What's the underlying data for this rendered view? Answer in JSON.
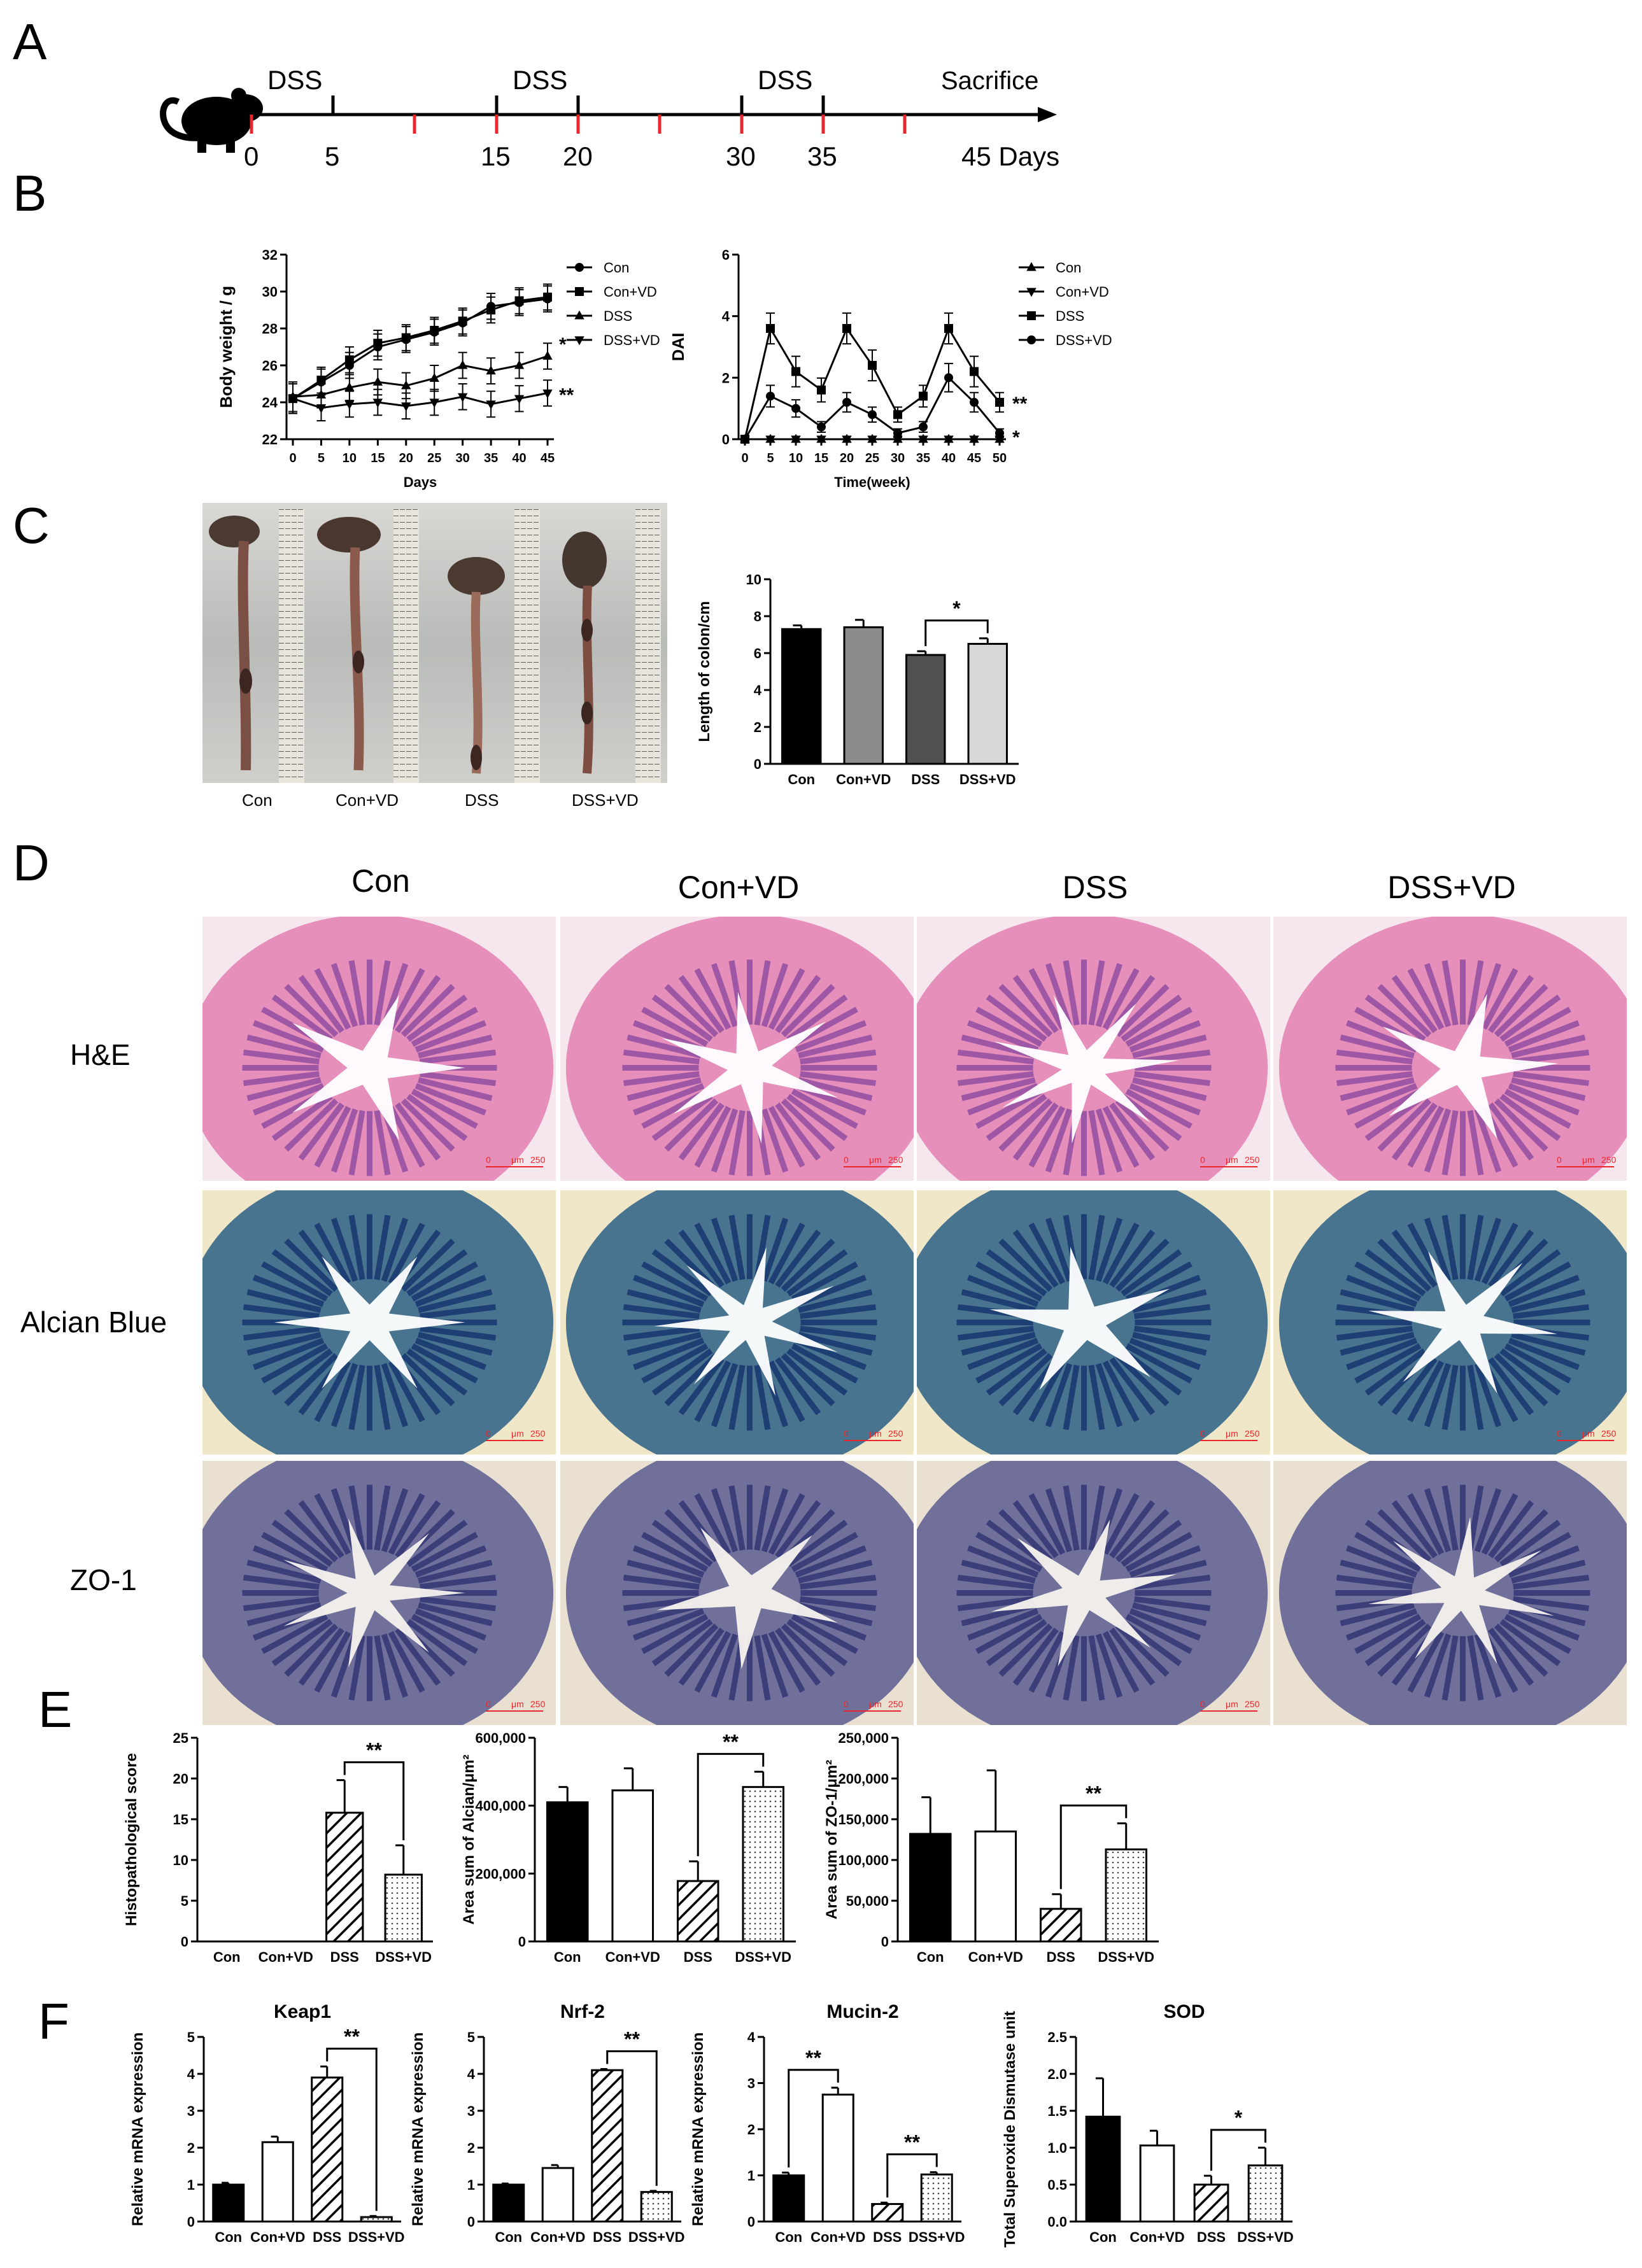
{
  "panel_labels": {
    "A": "A",
    "B": "B",
    "C": "C",
    "D": "D",
    "E": "E",
    "F": "F"
  },
  "timeline": {
    "ticks": [
      "0",
      "5",
      "15",
      "20",
      "30",
      "35",
      "45 Days"
    ],
    "labels": [
      "DSS",
      "DSS",
      "DSS",
      "Sacrifice"
    ]
  },
  "colors": {
    "black_bar": "#000000",
    "dark_gray": "#505050",
    "mid_gray": "#8c8c8c",
    "light_gray": "#d7d7d7",
    "red_tick": "#e8262b",
    "he_pink": "#e889b6",
    "he_purple": "#8b4aa0",
    "alcian_blue": "#1e3f7a",
    "zo1_blue": "#3a3f78"
  },
  "panel_C_photos": {
    "labels": [
      "Con",
      "Con+VD",
      "DSS",
      "DSS+VD"
    ]
  },
  "panel_D": {
    "columns": [
      "Con",
      "Con+VD",
      "DSS",
      "DSS+VD"
    ],
    "rows": [
      "H&E",
      "Alcian Blue",
      "ZO-1"
    ],
    "scale_unit": "μm",
    "scale_start": "0",
    "scale_value": "250"
  },
  "chart_data": [
    {
      "id": "body-weight",
      "type": "line",
      "ylabel": "Body weight / g",
      "xlabel": "Days",
      "ylim": [
        22,
        32
      ],
      "yticks": [
        "22",
        "24",
        "26",
        "28",
        "30",
        "32"
      ],
      "x": [
        0,
        5,
        10,
        15,
        20,
        25,
        30,
        35,
        40,
        45
      ],
      "series": [
        {
          "name": "Con",
          "marker": "circle",
          "values": [
            24.2,
            25.1,
            26.0,
            27.0,
            27.4,
            27.8,
            28.3,
            29.2,
            29.4,
            29.6
          ]
        },
        {
          "name": "Con+VD",
          "marker": "square",
          "values": [
            24.2,
            25.2,
            26.3,
            27.2,
            27.5,
            27.9,
            28.4,
            29.0,
            29.5,
            29.7
          ]
        },
        {
          "name": "DSS",
          "marker": "triangle-up",
          "values": [
            24.3,
            24.4,
            24.8,
            25.1,
            24.9,
            25.3,
            26.0,
            25.7,
            26.0,
            26.5
          ]
        },
        {
          "name": "DSS+VD",
          "marker": "triangle-down",
          "values": [
            24.2,
            23.7,
            23.9,
            24.0,
            23.8,
            24.0,
            24.3,
            23.9,
            24.2,
            24.5
          ]
        }
      ],
      "annotations": [
        "*",
        "**"
      ]
    },
    {
      "id": "dai",
      "type": "line",
      "ylabel": "DAI",
      "xlabel": "Time(week)",
      "ylim": [
        0,
        6
      ],
      "yticks": [
        "0",
        "2",
        "4",
        "6"
      ],
      "x": [
        0,
        5,
        10,
        15,
        20,
        25,
        30,
        35,
        40,
        45,
        50
      ],
      "series": [
        {
          "name": "Con",
          "marker": "triangle-up",
          "values": [
            0,
            0,
            0,
            0,
            0,
            0,
            0,
            0,
            0,
            0,
            0
          ]
        },
        {
          "name": "Con+VD",
          "marker": "triangle-down",
          "values": [
            0,
            0,
            0,
            0,
            0,
            0,
            0,
            0,
            0,
            0,
            0
          ]
        },
        {
          "name": "DSS",
          "marker": "square",
          "values": [
            0,
            3.6,
            2.2,
            1.6,
            3.6,
            2.4,
            0.8,
            1.4,
            3.6,
            2.2,
            1.2
          ]
        },
        {
          "name": "DSS+VD",
          "marker": "circle",
          "values": [
            0,
            1.4,
            1.0,
            0.4,
            1.2,
            0.8,
            0.2,
            0.4,
            2.0,
            1.2,
            0.2
          ]
        }
      ],
      "annotations": [
        "**",
        "*"
      ]
    },
    {
      "id": "colon-length",
      "type": "bar",
      "ylabel": "Length of colon/cm",
      "ylim": [
        0,
        10
      ],
      "yticks": [
        "0",
        "2",
        "4",
        "6",
        "8",
        "10"
      ],
      "categories": [
        "Con",
        "Con+VD",
        "DSS",
        "DSS+VD"
      ],
      "values": [
        7.3,
        7.4,
        5.9,
        6.5
      ],
      "errors": [
        0.2,
        0.4,
        0.2,
        0.3
      ],
      "significance": {
        "from": 2,
        "to": 3,
        "label": "*"
      }
    },
    {
      "id": "histo-score",
      "type": "bar",
      "ylabel": "Histopathological score",
      "ylim": [
        0,
        25
      ],
      "yticks": [
        "0",
        "5",
        "10",
        "15",
        "20",
        "25"
      ],
      "categories": [
        "Con",
        "Con+VD",
        "DSS",
        "DSS+VD"
      ],
      "values": [
        0,
        0,
        15.8,
        8.2
      ],
      "errors": [
        0,
        0,
        4.0,
        3.6
      ],
      "significance": {
        "from": 2,
        "to": 3,
        "label": "**"
      }
    },
    {
      "id": "alcian-area",
      "type": "bar",
      "ylabel": "Area sum of Alcian/μm²",
      "ylim": [
        0,
        600000
      ],
      "yticks": [
        "0",
        "200,000",
        "400,000",
        "600,000"
      ],
      "categories": [
        "Con",
        "Con+VD",
        "DSS",
        "DSS+VD"
      ],
      "values": [
        410000,
        445000,
        178000,
        455000
      ],
      "errors": [
        45000,
        65000,
        58000,
        45000
      ],
      "significance": {
        "from": 2,
        "to": 3,
        "label": "**"
      }
    },
    {
      "id": "zo1-area",
      "type": "bar",
      "ylabel": "Area sum of ZO-1/μm²",
      "ylim": [
        0,
        250000
      ],
      "yticks": [
        "0",
        "50,000",
        "100,000",
        "150,000",
        "200,000",
        "250,000"
      ],
      "categories": [
        "Con",
        "Con+VD",
        "DSS",
        "DSS+VD"
      ],
      "values": [
        132000,
        135000,
        40000,
        113000
      ],
      "errors": [
        45000,
        75000,
        18000,
        32000
      ],
      "significance": {
        "from": 2,
        "to": 3,
        "label": "**"
      }
    },
    {
      "id": "keap1",
      "type": "bar",
      "title": "Keap1",
      "ylabel": "Relative mRNA expression",
      "ylim": [
        0,
        5
      ],
      "yticks": [
        "0",
        "1",
        "2",
        "3",
        "4",
        "5"
      ],
      "categories": [
        "Con",
        "Con+VD",
        "DSS",
        "DSS+VD"
      ],
      "values": [
        1.0,
        2.15,
        3.9,
        0.12
      ],
      "errors": [
        0.05,
        0.15,
        0.3,
        0.03
      ],
      "significance": {
        "from": 2,
        "to": 3,
        "label": "**"
      }
    },
    {
      "id": "nrf2",
      "type": "bar",
      "title": "Nrf-2",
      "ylabel": "Relative mRNA expression",
      "ylim": [
        0,
        5
      ],
      "yticks": [
        "0",
        "1",
        "2",
        "3",
        "4",
        "5"
      ],
      "categories": [
        "Con",
        "Con+VD",
        "DSS",
        "DSS+VD"
      ],
      "values": [
        1.0,
        1.45,
        4.1,
        0.8
      ],
      "errors": [
        0.03,
        0.08,
        0.03,
        0.03
      ],
      "significance": {
        "from": 2,
        "to": 3,
        "label": "**"
      }
    },
    {
      "id": "mucin2",
      "type": "bar",
      "title": "Mucin-2",
      "ylabel": "Relative mRNA expression",
      "ylim": [
        0,
        4
      ],
      "yticks": [
        "0",
        "1",
        "2",
        "3",
        "4"
      ],
      "categories": [
        "Con",
        "Con+VD",
        "DSS",
        "DSS+VD"
      ],
      "values": [
        1.0,
        2.75,
        0.38,
        1.02
      ],
      "errors": [
        0.06,
        0.15,
        0.03,
        0.05
      ],
      "significance": [
        {
          "from": 0,
          "to": 1,
          "label": "**"
        },
        {
          "from": 2,
          "to": 3,
          "label": "**"
        }
      ]
    },
    {
      "id": "sod",
      "type": "bar",
      "title": "SOD",
      "ylabel": "Total Superoxide Dismutase unit",
      "ylim": [
        0,
        2.5
      ],
      "yticks": [
        "0.0",
        "0.5",
        "1.0",
        "1.5",
        "2.0",
        "2.5"
      ],
      "categories": [
        "Con",
        "Con+VD",
        "DSS",
        "DSS+VD"
      ],
      "values": [
        1.42,
        1.03,
        0.5,
        0.76
      ],
      "errors": [
        0.52,
        0.2,
        0.12,
        0.24
      ],
      "significance": {
        "from": 2,
        "to": 3,
        "label": "*"
      }
    }
  ]
}
